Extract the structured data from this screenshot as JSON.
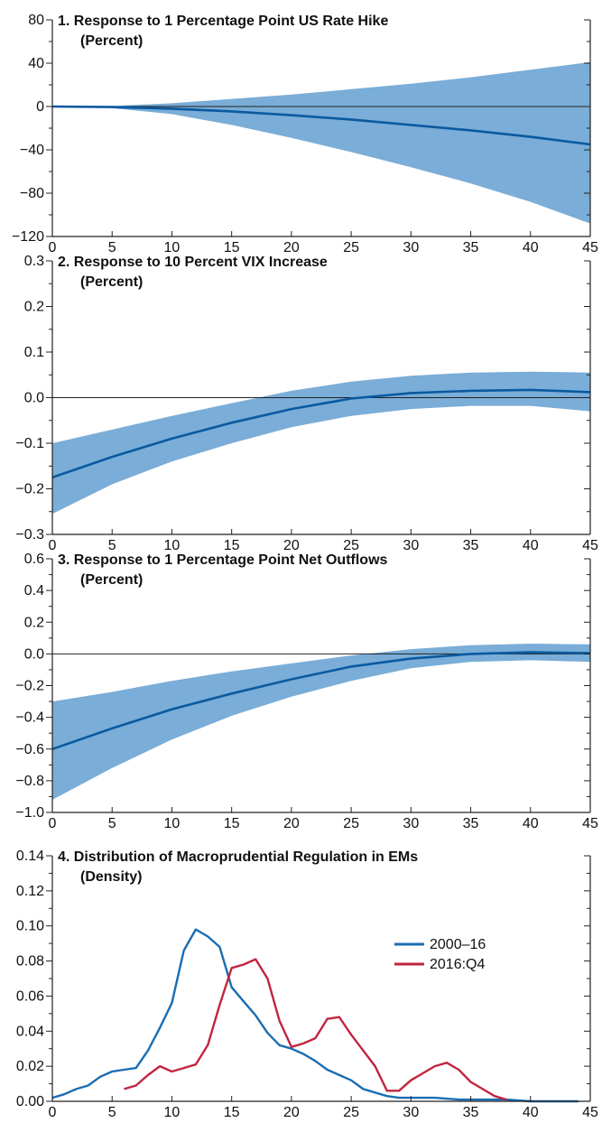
{
  "chart_data": [
    {
      "type": "area",
      "title": "1. Response to 1 Percentage Point US Rate Hike",
      "subtitle": "(Percent)",
      "xlim": [
        0,
        45
      ],
      "ylim": [
        -120,
        80
      ],
      "x_ticks": [
        0,
        5,
        10,
        15,
        20,
        25,
        30,
        35,
        40,
        45
      ],
      "y_ticks": [
        -120,
        -80,
        -40,
        0,
        40,
        80
      ],
      "y_tick_labels": [
        "−120",
        "−80",
        "−40",
        "0",
        "40",
        "80"
      ],
      "y_minor_step": 20,
      "zero_line": true,
      "x": [
        0,
        5,
        10,
        15,
        20,
        25,
        30,
        35,
        40,
        45
      ],
      "line": [
        0,
        -0.5,
        -2,
        -4.5,
        -8,
        -12,
        -17,
        -22,
        -28,
        -35
      ],
      "upper": [
        0,
        0.5,
        3,
        7,
        11,
        16,
        21,
        27,
        34,
        41
      ],
      "lower": [
        0,
        -1.5,
        -7,
        -17,
        -29,
        -42,
        -56,
        -71,
        -88,
        -108
      ],
      "line_color": "#0a5aa0",
      "band_color": "#7aadd7"
    },
    {
      "type": "area",
      "title": "2. Response to 10 Percent VIX Increase",
      "subtitle": "(Percent)",
      "xlim": [
        0,
        45
      ],
      "ylim": [
        -0.3,
        0.3
      ],
      "x_ticks": [
        0,
        5,
        10,
        15,
        20,
        25,
        30,
        35,
        40,
        45
      ],
      "y_ticks": [
        -0.3,
        -0.2,
        -0.1,
        0.0,
        0.1,
        0.2,
        0.3
      ],
      "y_tick_labels": [
        "−0.3",
        "−0.2",
        "−0.1",
        "0.0",
        "0.1",
        "0.2",
        "0.3"
      ],
      "y_minor_step": 0.05,
      "zero_line": true,
      "x": [
        0,
        5,
        10,
        15,
        20,
        25,
        30,
        35,
        40,
        45
      ],
      "line": [
        -0.175,
        -0.13,
        -0.09,
        -0.055,
        -0.025,
        -0.002,
        0.01,
        0.015,
        0.017,
        0.012
      ],
      "upper": [
        -0.1,
        -0.07,
        -0.04,
        -0.012,
        0.015,
        0.035,
        0.048,
        0.055,
        0.057,
        0.055
      ],
      "lower": [
        -0.255,
        -0.19,
        -0.14,
        -0.1,
        -0.065,
        -0.04,
        -0.025,
        -0.018,
        -0.018,
        -0.03
      ],
      "line_color": "#0a5aa0",
      "band_color": "#7aadd7"
    },
    {
      "type": "area",
      "title": "3. Response to 1 Percentage Point Net Outflows",
      "subtitle": "(Percent)",
      "xlim": [
        0,
        45
      ],
      "ylim": [
        -1.0,
        0.6
      ],
      "x_ticks": [
        0,
        5,
        10,
        15,
        20,
        25,
        30,
        35,
        40,
        45
      ],
      "y_ticks": [
        -1.0,
        -0.8,
        -0.6,
        -0.4,
        -0.2,
        0.0,
        0.2,
        0.4,
        0.6
      ],
      "y_tick_labels": [
        "−1.0",
        "−0.8",
        "−0.6",
        "−0.4",
        "−0.2",
        "0.0",
        "0.2",
        "0.4",
        "0.6"
      ],
      "y_minor_step": 0.1,
      "zero_line": true,
      "x": [
        0,
        5,
        10,
        15,
        20,
        25,
        30,
        35,
        40,
        45
      ],
      "line": [
        -0.6,
        -0.47,
        -0.35,
        -0.25,
        -0.16,
        -0.08,
        -0.03,
        0.0,
        0.01,
        0.005
      ],
      "upper": [
        -0.3,
        -0.24,
        -0.17,
        -0.11,
        -0.06,
        -0.01,
        0.03,
        0.055,
        0.065,
        0.06
      ],
      "lower": [
        -0.92,
        -0.72,
        -0.54,
        -0.39,
        -0.27,
        -0.17,
        -0.09,
        -0.05,
        -0.04,
        -0.05
      ],
      "line_color": "#0a5aa0",
      "band_color": "#7aadd7"
    },
    {
      "type": "line",
      "title": "4. Distribution of Macroprudential Regulation in EMs",
      "subtitle": "(Density)",
      "xlim": [
        0,
        45
      ],
      "ylim": [
        0,
        0.14
      ],
      "x_ticks": [
        0,
        5,
        10,
        15,
        20,
        25,
        30,
        35,
        40,
        45
      ],
      "y_ticks": [
        0.0,
        0.02,
        0.04,
        0.06,
        0.08,
        0.1,
        0.12,
        0.14
      ],
      "y_tick_labels": [
        "0.00",
        "0.02",
        "0.04",
        "0.06",
        "0.08",
        "0.10",
        "0.12",
        "0.14"
      ],
      "y_minor_step": 0.01,
      "zero_line": false,
      "legend_position": "right",
      "series": [
        {
          "name": "2000–16",
          "color": "#1a6db3",
          "x": [
            0,
            1,
            2,
            3,
            4,
            5,
            6,
            7,
            8,
            9,
            10,
            11,
            12,
            13,
            14,
            15,
            16,
            17,
            18,
            19,
            20,
            21,
            22,
            23,
            24,
            25,
            26,
            27,
            28,
            29,
            30,
            32,
            34,
            36,
            38,
            40,
            42,
            44
          ],
          "y": [
            0.002,
            0.004,
            0.007,
            0.009,
            0.014,
            0.017,
            0.018,
            0.019,
            0.029,
            0.042,
            0.056,
            0.086,
            0.098,
            0.094,
            0.088,
            0.065,
            0.057,
            0.049,
            0.039,
            0.032,
            0.03,
            0.027,
            0.023,
            0.018,
            0.015,
            0.012,
            0.007,
            0.005,
            0.003,
            0.002,
            0.002,
            0.002,
            0.001,
            0.001,
            0.001,
            0.0,
            0.0,
            0.0
          ]
        },
        {
          "name": "2016:Q4",
          "color": "#c0253f",
          "x": [
            6,
            7,
            8,
            9,
            10,
            11,
            12,
            13,
            14,
            15,
            16,
            17,
            18,
            19,
            20,
            21,
            22,
            23,
            24,
            25,
            26,
            27,
            28,
            29,
            30,
            31,
            32,
            33,
            34,
            35,
            36,
            37,
            38
          ],
          "y": [
            0.007,
            0.009,
            0.015,
            0.02,
            0.017,
            0.019,
            0.021,
            0.032,
            0.055,
            0.076,
            0.078,
            0.081,
            0.07,
            0.046,
            0.031,
            0.033,
            0.036,
            0.047,
            0.048,
            0.038,
            0.029,
            0.02,
            0.006,
            0.006,
            0.012,
            0.016,
            0.02,
            0.022,
            0.018,
            0.011,
            0.007,
            0.003,
            0.001
          ]
        }
      ]
    }
  ]
}
